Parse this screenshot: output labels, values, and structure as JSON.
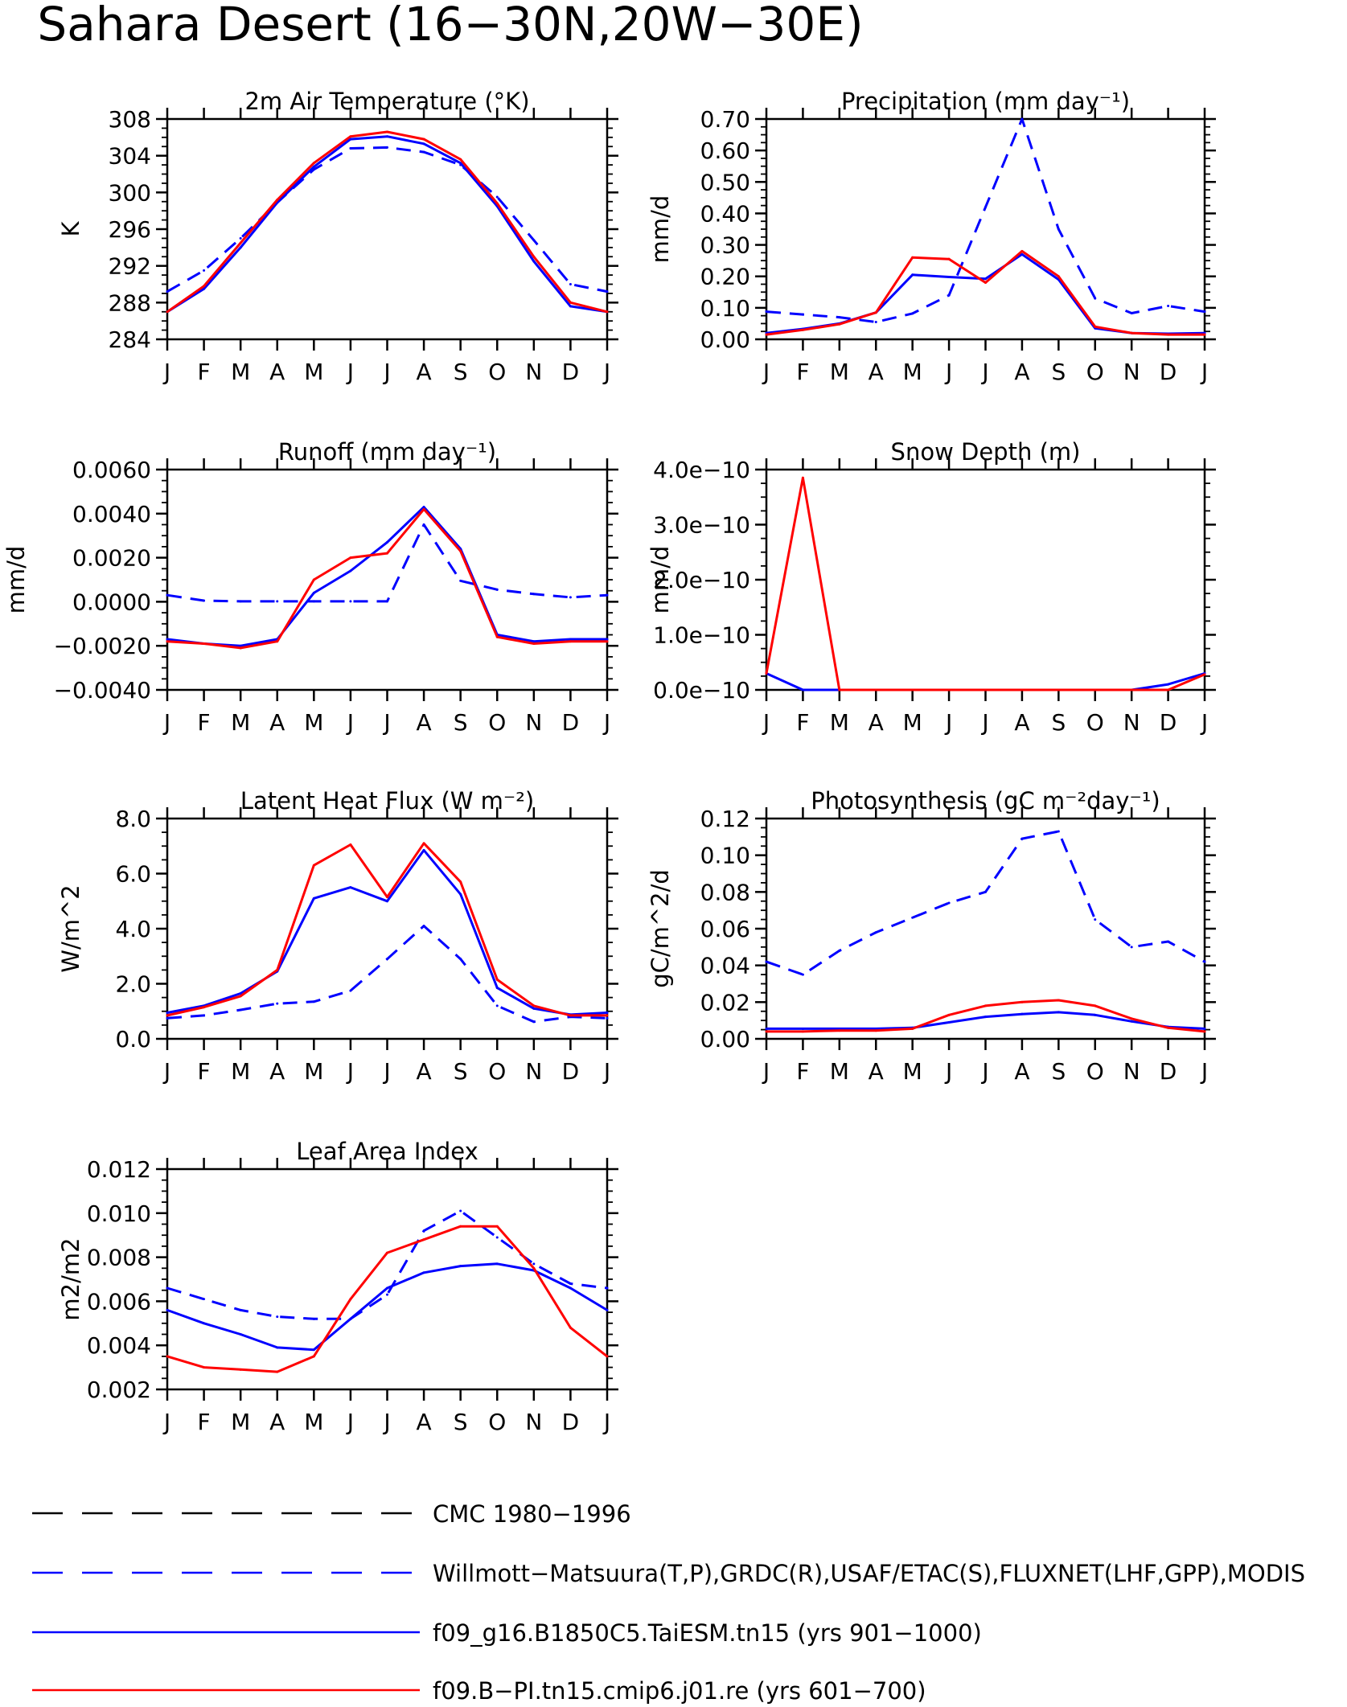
{
  "title": "Sahara Desert (16−30N,20W−30E)",
  "months": [
    "J",
    "F",
    "M",
    "A",
    "M",
    "J",
    "J",
    "A",
    "S",
    "O",
    "N",
    "D",
    "J"
  ],
  "colors": {
    "obs": "#0000ff",
    "model1": "#0000ff",
    "model2": "#ff0000",
    "cmc": "#000000"
  },
  "legend": [
    {
      "label": "CMC 1980−1996",
      "color": "#000000",
      "dash": true
    },
    {
      "label": "Willmott−Matsuura(T,P),GRDC(R),USAF/ETAC(S),FLUXNET(LHF,GPP),MODIS",
      "color": "#0000ff",
      "dash": true
    },
    {
      "label": "f09_g16.B1850C5.TaiESM.tn15 (yrs 901−1000)",
      "color": "#0000ff",
      "dash": false
    },
    {
      "label": "f09.B−PI.tn15.cmip6.j01.re (yrs 601−700)",
      "color": "#ff0000",
      "dash": false
    }
  ],
  "chart_data": [
    {
      "type": "line",
      "title": "2m Air Temperature (°K)",
      "ylabel": "K",
      "ylim": [
        284,
        308
      ],
      "yticks": [
        "284",
        "288",
        "292",
        "296",
        "300",
        "304",
        "308"
      ],
      "x": [
        "J",
        "F",
        "M",
        "A",
        "M",
        "J",
        "J",
        "A",
        "S",
        "O",
        "N",
        "D",
        "J"
      ],
      "series": [
        {
          "values": [
            289.2,
            291.5,
            295.0,
            298.9,
            302.5,
            304.8,
            304.9,
            304.4,
            303.0,
            299.5,
            294.8,
            290.0,
            289.2
          ],
          "color": "#0000ff",
          "dash": true
        },
        {
          "values": [
            287.0,
            289.5,
            294.0,
            298.9,
            302.8,
            305.8,
            306.1,
            305.3,
            303.2,
            298.5,
            292.5,
            287.6,
            287.0
          ],
          "color": "#0000ff",
          "dash": false
        },
        {
          "values": [
            287.0,
            289.8,
            294.5,
            299.2,
            303.2,
            306.1,
            306.6,
            305.8,
            303.6,
            298.8,
            293.0,
            288.0,
            287.0
          ],
          "color": "#ff0000",
          "dash": false
        }
      ]
    },
    {
      "type": "line",
      "title": "Precipitation (mm day⁻¹)",
      "ylabel": "mm/d",
      "ylim": [
        0,
        0.7
      ],
      "yticks": [
        "0.00",
        "0.10",
        "0.20",
        "0.30",
        "0.40",
        "0.50",
        "0.60",
        "0.70"
      ],
      "x": [
        "J",
        "F",
        "M",
        "A",
        "M",
        "J",
        "J",
        "A",
        "S",
        "O",
        "N",
        "D",
        "J"
      ],
      "series": [
        {
          "values": [
            0.088,
            0.079,
            0.07,
            0.055,
            0.082,
            0.14,
            0.42,
            0.7,
            0.35,
            0.13,
            0.083,
            0.106,
            0.088
          ],
          "color": "#0000ff",
          "dash": true
        },
        {
          "values": [
            0.02,
            0.033,
            0.05,
            0.085,
            0.205,
            0.198,
            0.192,
            0.27,
            0.19,
            0.035,
            0.02,
            0.018,
            0.02
          ],
          "color": "#0000ff",
          "dash": false
        },
        {
          "values": [
            0.015,
            0.03,
            0.048,
            0.085,
            0.26,
            0.255,
            0.18,
            0.28,
            0.2,
            0.04,
            0.02,
            0.015,
            0.015
          ],
          "color": "#ff0000",
          "dash": false
        }
      ]
    },
    {
      "type": "line",
      "title": "Runoff (mm day⁻¹)",
      "ylabel": "mm/d",
      "ylim": [
        -0.004,
        0.006
      ],
      "yticks": [
        "−0.0040",
        "−0.0020",
        "0.0000",
        "0.0020",
        "0.0040",
        "0.0060"
      ],
      "x": [
        "J",
        "F",
        "M",
        "A",
        "M",
        "J",
        "J",
        "A",
        "S",
        "O",
        "N",
        "D",
        "J"
      ],
      "series": [
        {
          "values": [
            0.0003,
            5e-05,
            2e-05,
            2e-05,
            2e-05,
            2e-05,
            2e-05,
            0.0035,
            0.00095,
            0.00055,
            0.00035,
            0.0002,
            0.0003
          ],
          "color": "#0000ff",
          "dash": true
        },
        {
          "values": [
            -0.0017,
            -0.0019,
            -0.002,
            -0.0017,
            0.0004,
            0.0014,
            0.0027,
            0.0043,
            0.0024,
            -0.0015,
            -0.0018,
            -0.0017,
            -0.0017
          ],
          "color": "#0000ff",
          "dash": false
        },
        {
          "values": [
            -0.0018,
            -0.0019,
            -0.0021,
            -0.0018,
            0.001,
            0.002,
            0.0022,
            0.0042,
            0.0023,
            -0.0016,
            -0.0019,
            -0.0018,
            -0.0018
          ],
          "color": "#ff0000",
          "dash": false
        }
      ]
    },
    {
      "type": "line",
      "title": "Snow Depth (m)",
      "ylabel": "mm/d",
      "ylim": [
        0,
        4e-10
      ],
      "yticks": [
        "0.0e−10",
        "1.0e−10",
        "2.0e−10",
        "3.0e−10",
        "4.0e−10"
      ],
      "x": [
        "J",
        "F",
        "M",
        "A",
        "M",
        "J",
        "J",
        "A",
        "S",
        "O",
        "N",
        "D",
        "J"
      ],
      "series": [
        {
          "values": [
            3e-11,
            0,
            0,
            0,
            0,
            0,
            0,
            0,
            0,
            0,
            0,
            1e-11,
            3e-11
          ],
          "color": "#0000ff",
          "dash": false
        },
        {
          "values": [
            3e-11,
            3.85e-10,
            0,
            0,
            0,
            0,
            0,
            0,
            0,
            0,
            0,
            0,
            2.8e-11
          ],
          "color": "#ff0000",
          "dash": false
        }
      ]
    },
    {
      "type": "line",
      "title": "Latent Heat Flux (W m⁻²)",
      "ylabel": "W/m^2",
      "ylim": [
        0,
        8
      ],
      "yticks": [
        "0.0",
        "2.0",
        "4.0",
        "6.0",
        "8.0"
      ],
      "x": [
        "J",
        "F",
        "M",
        "A",
        "M",
        "J",
        "J",
        "A",
        "S",
        "O",
        "N",
        "D",
        "J"
      ],
      "series": [
        {
          "values": [
            0.75,
            0.85,
            1.05,
            1.28,
            1.35,
            1.75,
            2.9,
            4.1,
            2.9,
            1.2,
            0.62,
            0.8,
            0.75
          ],
          "color": "#0000ff",
          "dash": true
        },
        {
          "values": [
            0.95,
            1.2,
            1.65,
            2.45,
            5.1,
            5.5,
            5.0,
            6.85,
            5.25,
            1.85,
            1.1,
            0.88,
            0.95
          ],
          "color": "#0000ff",
          "dash": false
        },
        {
          "values": [
            0.85,
            1.15,
            1.55,
            2.5,
            6.3,
            7.05,
            5.15,
            7.1,
            5.7,
            2.15,
            1.2,
            0.85,
            0.85
          ],
          "color": "#ff0000",
          "dash": false
        }
      ]
    },
    {
      "type": "line",
      "title": "Photosynthesis (gC m⁻²day⁻¹)",
      "ylabel": "gC/m^2/d",
      "ylim": [
        0,
        0.12
      ],
      "yticks": [
        "0.00",
        "0.02",
        "0.04",
        "0.06",
        "0.08",
        "0.10",
        "0.12"
      ],
      "x": [
        "J",
        "F",
        "M",
        "A",
        "M",
        "J",
        "J",
        "A",
        "S",
        "O",
        "N",
        "D",
        "J"
      ],
      "series": [
        {
          "values": [
            0.042,
            0.035,
            0.048,
            0.058,
            0.066,
            0.074,
            0.08,
            0.109,
            0.113,
            0.065,
            0.05,
            0.053,
            0.042
          ],
          "color": "#0000ff",
          "dash": true
        },
        {
          "values": [
            0.0055,
            0.0055,
            0.0055,
            0.0055,
            0.006,
            0.009,
            0.012,
            0.0135,
            0.0145,
            0.013,
            0.0095,
            0.0065,
            0.0055
          ],
          "color": "#0000ff",
          "dash": false
        },
        {
          "values": [
            0.004,
            0.004,
            0.0045,
            0.0045,
            0.0055,
            0.013,
            0.018,
            0.02,
            0.021,
            0.018,
            0.011,
            0.006,
            0.004
          ],
          "color": "#ff0000",
          "dash": false
        }
      ]
    },
    {
      "type": "line",
      "title": "Leaf Area Index",
      "ylabel": "m2/m2",
      "ylim": [
        0.002,
        0.012
      ],
      "yticks": [
        "0.002",
        "0.004",
        "0.006",
        "0.008",
        "0.010",
        "0.012"
      ],
      "x": [
        "J",
        "F",
        "M",
        "A",
        "M",
        "J",
        "J",
        "A",
        "S",
        "O",
        "N",
        "D",
        "J"
      ],
      "series": [
        {
          "values": [
            0.0066,
            0.0061,
            0.0056,
            0.0053,
            0.0052,
            0.0052,
            0.0063,
            0.0092,
            0.0101,
            0.0089,
            0.0077,
            0.0068,
            0.0066
          ],
          "color": "#0000ff",
          "dash": true
        },
        {
          "values": [
            0.0056,
            0.005,
            0.0045,
            0.0039,
            0.0038,
            0.0052,
            0.0066,
            0.0073,
            0.0076,
            0.0077,
            0.0074,
            0.0066,
            0.0056
          ],
          "color": "#0000ff",
          "dash": false
        },
        {
          "values": [
            0.0035,
            0.003,
            0.0029,
            0.0028,
            0.0035,
            0.0061,
            0.0082,
            0.0088,
            0.0094,
            0.0094,
            0.0075,
            0.0048,
            0.0035
          ],
          "color": "#ff0000",
          "dash": false
        }
      ]
    }
  ]
}
